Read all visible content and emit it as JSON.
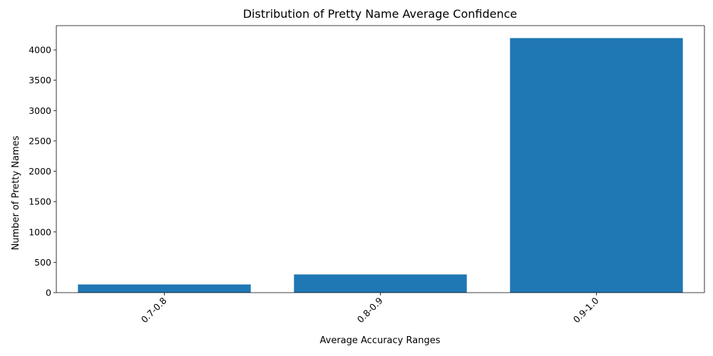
{
  "chart_data": {
    "type": "bar",
    "title": "Distribution of Pretty Name Average Confidence",
    "xlabel": "Average Accuracy Ranges",
    "ylabel": "Number of Pretty Names",
    "categories": [
      "0.7-0.8",
      "0.8-0.9",
      "0.9-1.0"
    ],
    "values": [
      135,
      300,
      4195
    ],
    "ylim": [
      0,
      4400
    ],
    "yticks": [
      0,
      500,
      1000,
      1500,
      2000,
      2500,
      3000,
      3500,
      4000
    ],
    "bar_color": "#1f77b4",
    "grid": false,
    "x_tick_rotation_deg": 45
  }
}
